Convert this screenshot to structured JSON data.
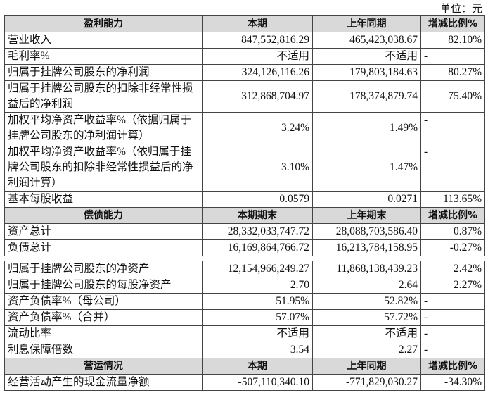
{
  "unit": "单位：元",
  "sections": [
    {
      "header": [
        "盈利能力",
        "本期",
        "上年同期",
        "增减比例%"
      ],
      "rows": [
        [
          "营业收入",
          "847,552,816.29",
          "465,423,038.67",
          "82.10%"
        ],
        [
          "毛利率%",
          "不适用",
          "不适用",
          "-"
        ],
        [
          "归属于挂牌公司股东的净利润",
          "324,126,116.26",
          "179,803,184.63",
          "80.27%"
        ],
        [
          "归属于挂牌公司股东的扣除非经常性损益后的净利润",
          "312,868,704.97",
          "178,374,879.74",
          "75.40%"
        ],
        [
          "加权平均净资产收益率%（依据归属于挂牌公司股东的净利润计算）",
          "3.24%",
          "1.49%",
          "-"
        ],
        [
          "加权平均净资产收益率%（依归属于挂牌公司股东的扣除非经常性损益后的净利润计算）",
          "3.10%",
          "1.47%",
          "-"
        ],
        [
          "基本每股收益",
          "0.0579",
          "0.0271",
          "113.65%"
        ]
      ]
    },
    {
      "header": [
        "偿债能力",
        "本期期末",
        "上年期末",
        "增减比例%"
      ],
      "rows": [
        [
          "资产总计",
          "28,332,033,747.72",
          "28,088,703,586.40",
          "0.87%"
        ],
        [
          "负债总计",
          "16,169,864,766.72",
          "16,213,784,158.95",
          "-0.27%"
        ],
        [
          "归属于挂牌公司股东的净资产",
          "12,154,966,249.27",
          "11,868,138,439.23",
          "2.42%"
        ],
        [
          "归属于挂牌公司股东的每股净资产",
          "2.70",
          "2.64",
          "2.27%"
        ],
        [
          "资产负债率%（母公司）",
          "51.95%",
          "52.82%",
          "-"
        ],
        [
          "资产负债率%（合并）",
          "57.07%",
          "57.72%",
          "-"
        ],
        [
          "流动比率",
          "不适用",
          "不适用",
          "-"
        ],
        [
          "利息保障倍数",
          "3.54",
          "2.27",
          "-"
        ]
      ]
    },
    {
      "header": [
        "营运情况",
        "本期",
        "上年同期",
        "增减比例%"
      ],
      "rows": [
        [
          "经营活动产生的现金流量净额",
          "-507,110,340.10",
          "-771,829,030.27",
          "-34.30%"
        ]
      ]
    }
  ]
}
